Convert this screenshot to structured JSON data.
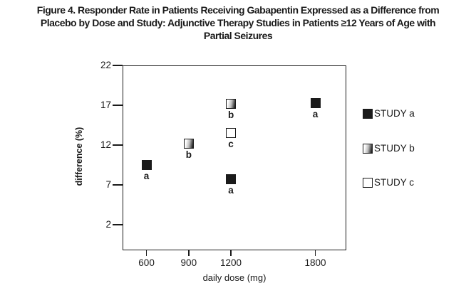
{
  "figure": {
    "title_lines": [
      "Figure 4. Responder Rate in Patients Receiving Gabapentin Expressed as a Difference from",
      "Placebo by Dose and Study: Adjunctive Therapy Studies in Patients ≥12 Years of Age with",
      "Partial Seizures"
    ]
  },
  "chart_data": {
    "type": "scatter",
    "title": "Figure 4. Responder Rate in Patients Receiving Gabapentin Expressed as a Difference from Placebo by Dose and Study: Adjunctive Therapy Studies in Patients ≥12 Years of Age with Partial Seizures",
    "xlabel": "daily dose (mg)",
    "ylabel": "difference (%)",
    "x_ticks": [
      600,
      900,
      1200,
      1800
    ],
    "y_ticks": [
      22,
      17,
      12,
      7,
      2
    ],
    "xlim": [
      430,
      2020
    ],
    "ylim": [
      -1,
      22
    ],
    "grid": false,
    "legend_position": "right",
    "series": [
      {
        "name": "STUDY a",
        "marker": "filled-black",
        "points": [
          {
            "x": 600,
            "y": 9.5,
            "label": "a"
          },
          {
            "x": 1200,
            "y": 7.7,
            "label": "a"
          },
          {
            "x": 1800,
            "y": 17.3,
            "label": "a"
          }
        ]
      },
      {
        "name": "STUDY b",
        "marker": "gradient",
        "points": [
          {
            "x": 900,
            "y": 12.2,
            "label": "b"
          },
          {
            "x": 1200,
            "y": 17.2,
            "label": "b"
          }
        ]
      },
      {
        "name": "STUDY c",
        "marker": "open-white",
        "points": [
          {
            "x": 1200,
            "y": 13.5,
            "label": "c"
          }
        ]
      }
    ]
  },
  "colors": {
    "ink": "#1a1a1a",
    "background": "#ffffff"
  }
}
